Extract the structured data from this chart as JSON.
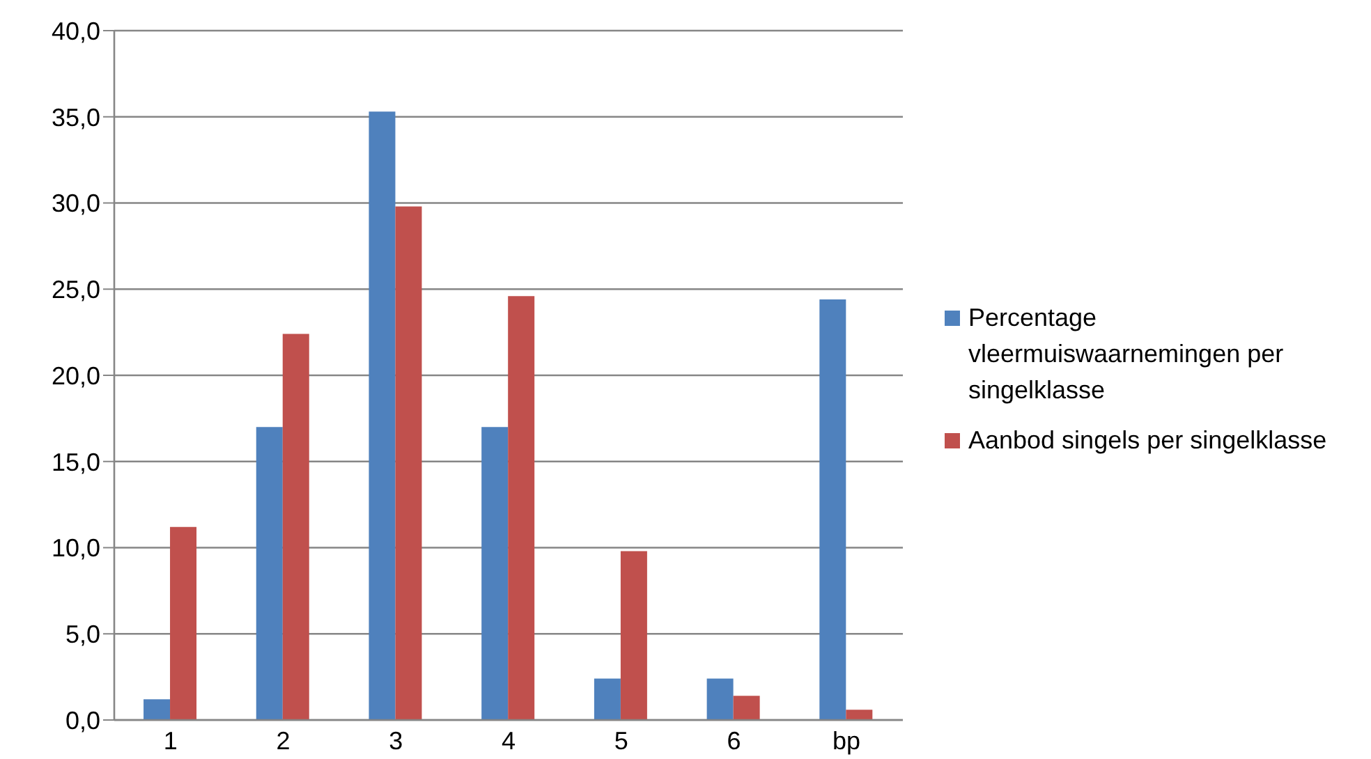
{
  "chart_data": {
    "type": "bar",
    "categories": [
      "1",
      "2",
      "3",
      "4",
      "5",
      "6",
      "bp"
    ],
    "series": [
      {
        "name": "Percentage vleermuiswaarnemingen per singelklasse",
        "color": "#4f81bd",
        "values": [
          1.2,
          17.0,
          35.3,
          17.0,
          2.4,
          2.4,
          24.4
        ]
      },
      {
        "name": "Aanbod singels per singelklasse",
        "color": "#c0504d",
        "values": [
          11.2,
          22.4,
          29.8,
          24.6,
          9.8,
          1.4,
          0.6
        ]
      }
    ],
    "ylim": [
      0,
      40
    ],
    "yticks": [
      {
        "value": 0,
        "label": "0,0"
      },
      {
        "value": 5,
        "label": "5,0"
      },
      {
        "value": 10,
        "label": "10,0"
      },
      {
        "value": 15,
        "label": "15,0"
      },
      {
        "value": 20,
        "label": "20,0"
      },
      {
        "value": 25,
        "label": "25,0"
      },
      {
        "value": 30,
        "label": "30,0"
      },
      {
        "value": 35,
        "label": "35,0"
      },
      {
        "value": 40,
        "label": "40,0"
      }
    ],
    "grid": "y",
    "legend": "right"
  }
}
